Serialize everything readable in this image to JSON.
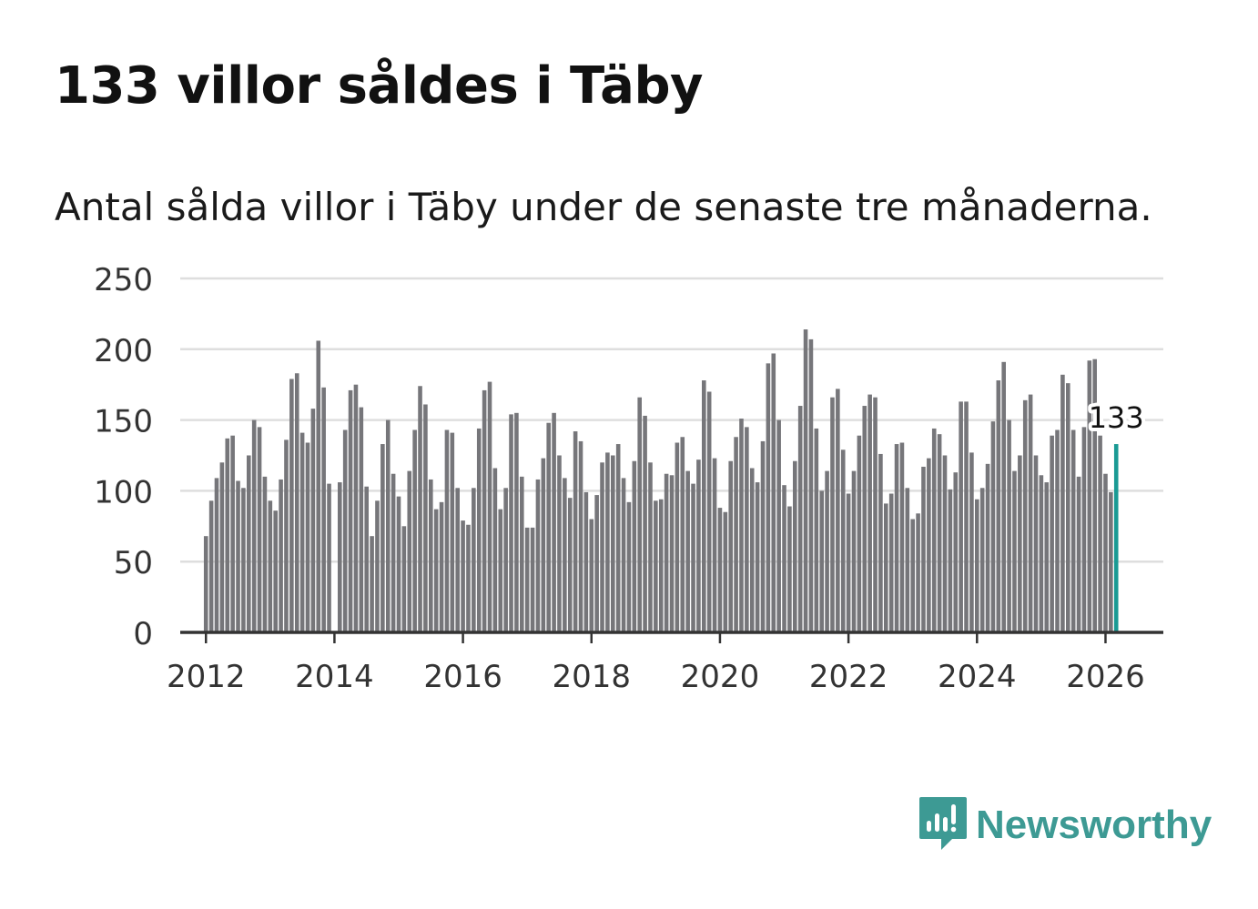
{
  "header": {
    "title": "133 villor såldes i Täby",
    "subtitle": "Antal sålda villor i Täby under de senaste tre månaderna."
  },
  "branding": {
    "name": "Newsworthy",
    "color": "#3d9a94"
  },
  "colors": {
    "bar": "#76767a",
    "highlight": "#1a9a94",
    "grid": "#dedede",
    "axis": "#333333"
  },
  "chart_data": {
    "type": "bar",
    "title": "133 villor såldes i Täby",
    "xlabel": "",
    "ylabel": "",
    "ylim": [
      0,
      250
    ],
    "yticks": [
      0,
      50,
      100,
      150,
      200,
      250
    ],
    "xlim": [
      2011.6,
      2026.9
    ],
    "xticks": [
      2012,
      2014,
      2016,
      2018,
      2020,
      2022,
      2024,
      2026
    ],
    "grid": true,
    "start": {
      "year": 2012,
      "month": 1
    },
    "highlight_label": "133",
    "values": [
      68,
      93,
      109,
      120,
      137,
      139,
      107,
      102,
      125,
      150,
      145,
      110,
      93,
      86,
      108,
      136,
      179,
      183,
      141,
      134,
      158,
      206,
      173,
      105,
      0,
      106,
      143,
      171,
      175,
      159,
      103,
      68,
      93,
      133,
      150,
      112,
      96,
      75,
      114,
      143,
      174,
      161,
      108,
      87,
      92,
      143,
      141,
      102,
      79,
      76,
      102,
      144,
      171,
      177,
      116,
      87,
      102,
      154,
      155,
      110,
      74,
      74,
      108,
      123,
      148,
      155,
      125,
      109,
      95,
      142,
      135,
      99,
      80,
      97,
      120,
      127,
      125,
      133,
      109,
      92,
      121,
      166,
      153,
      120,
      93,
      94,
      112,
      111,
      134,
      138,
      114,
      105,
      122,
      178,
      170,
      123,
      88,
      85,
      121,
      138,
      151,
      145,
      116,
      106,
      135,
      190,
      197,
      150,
      104,
      89,
      121,
      160,
      214,
      207,
      144,
      100,
      114,
      166,
      172,
      129,
      98,
      114,
      139,
      160,
      168,
      166,
      126,
      91,
      98,
      133,
      134,
      102,
      80,
      84,
      117,
      123,
      144,
      140,
      125,
      101,
      113,
      163,
      163,
      127,
      94,
      102,
      119,
      149,
      178,
      191,
      150,
      114,
      125,
      164,
      168,
      125,
      111,
      106,
      139,
      143,
      182,
      176,
      143,
      110,
      145,
      192,
      193,
      139,
      112,
      99,
      133
    ]
  }
}
